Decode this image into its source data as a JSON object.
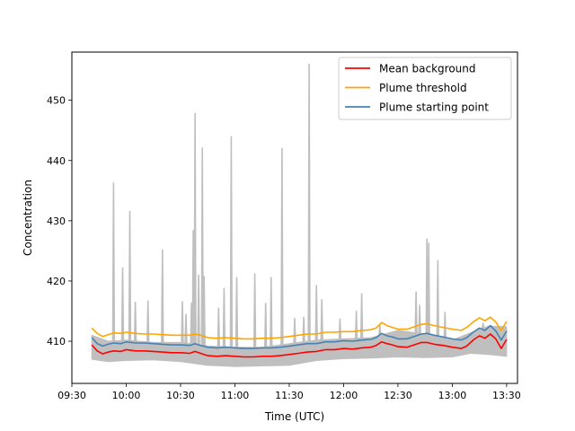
{
  "chart_data": {
    "type": "line",
    "title": "",
    "xlabel": "Time (UTC)",
    "ylabel": "Concentration",
    "xlim": [
      "09:30",
      "13:36"
    ],
    "ylim": [
      403,
      458
    ],
    "x_ticks": [
      "09:30",
      "10:00",
      "10:30",
      "11:00",
      "11:30",
      "12:00",
      "12:30",
      "13:00",
      "13:30"
    ],
    "y_ticks": [
      410,
      420,
      430,
      440,
      450
    ],
    "grid": false,
    "legend_position": "top-right",
    "raw_series": {
      "color": "#bfbfbf",
      "band": [
        {
          "t": "09:41",
          "lo": 407.0,
          "hi": 411.0
        },
        {
          "t": "09:50",
          "lo": 406.6,
          "hi": 410.0
        },
        {
          "t": "10:00",
          "lo": 406.8,
          "hi": 410.2
        },
        {
          "t": "10:15",
          "lo": 406.9,
          "hi": 409.8
        },
        {
          "t": "10:30",
          "lo": 406.6,
          "hi": 409.8
        },
        {
          "t": "10:45",
          "lo": 406.0,
          "hi": 409.2
        },
        {
          "t": "11:00",
          "lo": 405.8,
          "hi": 409.0
        },
        {
          "t": "11:15",
          "lo": 405.9,
          "hi": 409.0
        },
        {
          "t": "11:30",
          "lo": 406.0,
          "hi": 409.6
        },
        {
          "t": "11:45",
          "lo": 406.8,
          "hi": 410.2
        },
        {
          "t": "12:00",
          "lo": 407.1,
          "hi": 410.4
        },
        {
          "t": "12:15",
          "lo": 407.2,
          "hi": 410.6
        },
        {
          "t": "12:30",
          "lo": 407.4,
          "hi": 411.8
        },
        {
          "t": "12:45",
          "lo": 407.3,
          "hi": 411.2
        },
        {
          "t": "13:00",
          "lo": 407.4,
          "hi": 410.2
        },
        {
          "t": "13:10",
          "lo": 408.0,
          "hi": 411.4
        },
        {
          "t": "13:20",
          "lo": 407.8,
          "hi": 412.5
        },
        {
          "t": "13:30",
          "lo": 407.5,
          "hi": 412.4
        }
      ],
      "spikes": [
        {
          "t": "09:53",
          "peak": 436.3
        },
        {
          "t": "09:58",
          "peak": 422.2
        },
        {
          "t": "10:02",
          "peak": 431.6
        },
        {
          "t": "10:05",
          "peak": 416.5
        },
        {
          "t": "10:12",
          "peak": 416.7
        },
        {
          "t": "10:20",
          "peak": 425.2
        },
        {
          "t": "10:31",
          "peak": 416.6
        },
        {
          "t": "10:33",
          "peak": 414.5
        },
        {
          "t": "10:36",
          "peak": 416.4
        },
        {
          "t": "10:37",
          "peak": 428.4
        },
        {
          "t": "10:38",
          "peak": 447.8
        },
        {
          "t": "10:40",
          "peak": 421.0
        },
        {
          "t": "10:42",
          "peak": 442.1
        },
        {
          "t": "10:43",
          "peak": 420.8
        },
        {
          "t": "10:51",
          "peak": 415.5
        },
        {
          "t": "10:54",
          "peak": 418.8
        },
        {
          "t": "10:58",
          "peak": 444.0
        },
        {
          "t": "11:01",
          "peak": 420.6
        },
        {
          "t": "11:11",
          "peak": 421.2
        },
        {
          "t": "11:17",
          "peak": 416.3
        },
        {
          "t": "11:20",
          "peak": 420.6
        },
        {
          "t": "11:26",
          "peak": 442.0
        },
        {
          "t": "11:33",
          "peak": 413.8
        },
        {
          "t": "11:38",
          "peak": 414.0
        },
        {
          "t": "11:41",
          "peak": 456.0
        },
        {
          "t": "11:45",
          "peak": 419.3
        },
        {
          "t": "11:48",
          "peak": 416.9
        },
        {
          "t": "11:58",
          "peak": 413.7
        },
        {
          "t": "12:07",
          "peak": 415.0
        },
        {
          "t": "12:10",
          "peak": 417.9
        },
        {
          "t": "12:20",
          "peak": 412.7
        },
        {
          "t": "12:40",
          "peak": 418.2
        },
        {
          "t": "12:42",
          "peak": 416.0
        },
        {
          "t": "12:46",
          "peak": 427.0
        },
        {
          "t": "12:47",
          "peak": 426.3
        },
        {
          "t": "12:52",
          "peak": 423.4
        },
        {
          "t": "12:56",
          "peak": 414.8
        },
        {
          "t": "13:17",
          "peak": 413.0
        }
      ]
    },
    "series": [
      {
        "name": "Mean background",
        "color": "#ff0000",
        "points": [
          [
            "09:41",
            409.4
          ],
          [
            "09:44",
            408.4
          ],
          [
            "09:47",
            407.9
          ],
          [
            "09:50",
            408.2
          ],
          [
            "09:53",
            408.4
          ],
          [
            "09:57",
            408.3
          ],
          [
            "10:00",
            408.6
          ],
          [
            "10:05",
            408.4
          ],
          [
            "10:10",
            408.4
          ],
          [
            "10:15",
            408.3
          ],
          [
            "10:20",
            408.2
          ],
          [
            "10:25",
            408.1
          ],
          [
            "10:30",
            408.1
          ],
          [
            "10:35",
            408.0
          ],
          [
            "10:38",
            408.3
          ],
          [
            "10:41",
            408.0
          ],
          [
            "10:45",
            407.6
          ],
          [
            "10:50",
            407.5
          ],
          [
            "10:55",
            407.6
          ],
          [
            "11:00",
            407.5
          ],
          [
            "11:05",
            407.4
          ],
          [
            "11:10",
            407.4
          ],
          [
            "11:15",
            407.5
          ],
          [
            "11:20",
            407.5
          ],
          [
            "11:25",
            407.6
          ],
          [
            "11:30",
            407.8
          ],
          [
            "11:35",
            408.0
          ],
          [
            "11:40",
            408.2
          ],
          [
            "11:45",
            408.3
          ],
          [
            "11:50",
            408.6
          ],
          [
            "11:55",
            408.6
          ],
          [
            "12:00",
            408.8
          ],
          [
            "12:05",
            408.7
          ],
          [
            "12:10",
            408.9
          ],
          [
            "12:15",
            409.0
          ],
          [
            "12:18",
            409.3
          ],
          [
            "12:21",
            409.9
          ],
          [
            "12:24",
            409.6
          ],
          [
            "12:27",
            409.4
          ],
          [
            "12:30",
            409.1
          ],
          [
            "12:35",
            409.0
          ],
          [
            "12:40",
            409.5
          ],
          [
            "12:43",
            409.8
          ],
          [
            "12:46",
            409.8
          ],
          [
            "12:50",
            409.5
          ],
          [
            "12:55",
            409.3
          ],
          [
            "13:00",
            409.0
          ],
          [
            "13:05",
            408.8
          ],
          [
            "13:08",
            409.2
          ],
          [
            "13:12",
            410.3
          ],
          [
            "13:15",
            410.9
          ],
          [
            "13:18",
            410.5
          ],
          [
            "13:21",
            411.2
          ],
          [
            "13:24",
            410.4
          ],
          [
            "13:27",
            408.8
          ],
          [
            "13:30",
            410.3
          ]
        ]
      },
      {
        "name": "Plume threshold",
        "color": "#ffa500",
        "points": [
          [
            "09:41",
            412.2
          ],
          [
            "09:44",
            411.3
          ],
          [
            "09:47",
            410.8
          ],
          [
            "09:50",
            411.1
          ],
          [
            "09:53",
            411.4
          ],
          [
            "09:57",
            411.3
          ],
          [
            "10:00",
            411.5
          ],
          [
            "10:05",
            411.3
          ],
          [
            "10:10",
            411.2
          ],
          [
            "10:15",
            411.2
          ],
          [
            "10:20",
            411.1
          ],
          [
            "10:25",
            411.0
          ],
          [
            "10:30",
            411.0
          ],
          [
            "10:35",
            411.0
          ],
          [
            "10:38",
            411.2
          ],
          [
            "10:41",
            411.0
          ],
          [
            "10:45",
            410.6
          ],
          [
            "10:50",
            410.5
          ],
          [
            "10:55",
            410.6
          ],
          [
            "11:00",
            410.5
          ],
          [
            "11:05",
            410.4
          ],
          [
            "11:10",
            410.4
          ],
          [
            "11:15",
            410.5
          ],
          [
            "11:20",
            410.5
          ],
          [
            "11:25",
            410.6
          ],
          [
            "11:30",
            410.8
          ],
          [
            "11:35",
            411.0
          ],
          [
            "11:40",
            411.2
          ],
          [
            "11:45",
            411.2
          ],
          [
            "11:50",
            411.5
          ],
          [
            "11:55",
            411.5
          ],
          [
            "12:00",
            411.6
          ],
          [
            "12:05",
            411.6
          ],
          [
            "12:10",
            411.8
          ],
          [
            "12:15",
            411.9
          ],
          [
            "12:18",
            412.2
          ],
          [
            "12:21",
            413.1
          ],
          [
            "12:24",
            412.6
          ],
          [
            "12:27",
            412.3
          ],
          [
            "12:30",
            412.0
          ],
          [
            "12:35",
            412.0
          ],
          [
            "12:40",
            412.5
          ],
          [
            "12:43",
            412.8
          ],
          [
            "12:46",
            412.9
          ],
          [
            "12:50",
            412.6
          ],
          [
            "12:55",
            412.3
          ],
          [
            "13:00",
            412.0
          ],
          [
            "13:05",
            411.8
          ],
          [
            "13:08",
            412.3
          ],
          [
            "13:12",
            413.3
          ],
          [
            "13:15",
            413.9
          ],
          [
            "13:18",
            413.4
          ],
          [
            "13:21",
            414.0
          ],
          [
            "13:24",
            413.2
          ],
          [
            "13:27",
            411.8
          ],
          [
            "13:30",
            413.3
          ]
        ]
      },
      {
        "name": "Plume starting point",
        "color": "#4682b4",
        "points": [
          [
            "09:41",
            410.6
          ],
          [
            "09:44",
            409.6
          ],
          [
            "09:47",
            409.2
          ],
          [
            "09:50",
            409.5
          ],
          [
            "09:53",
            409.7
          ],
          [
            "09:57",
            409.6
          ],
          [
            "10:00",
            409.9
          ],
          [
            "10:05",
            409.7
          ],
          [
            "10:10",
            409.7
          ],
          [
            "10:15",
            409.6
          ],
          [
            "10:20",
            409.5
          ],
          [
            "10:25",
            409.4
          ],
          [
            "10:30",
            409.4
          ],
          [
            "10:35",
            409.3
          ],
          [
            "10:38",
            409.6
          ],
          [
            "10:41",
            409.3
          ],
          [
            "10:45",
            409.0
          ],
          [
            "10:50",
            408.9
          ],
          [
            "10:55",
            409.0
          ],
          [
            "11:00",
            408.9
          ],
          [
            "11:05",
            408.8
          ],
          [
            "11:10",
            408.8
          ],
          [
            "11:15",
            408.9
          ],
          [
            "11:20",
            408.9
          ],
          [
            "11:25",
            409.0
          ],
          [
            "11:30",
            409.2
          ],
          [
            "11:35",
            409.4
          ],
          [
            "11:40",
            409.6
          ],
          [
            "11:45",
            409.6
          ],
          [
            "11:50",
            409.9
          ],
          [
            "11:55",
            409.9
          ],
          [
            "12:00",
            410.1
          ],
          [
            "12:05",
            410.0
          ],
          [
            "12:10",
            410.2
          ],
          [
            "12:15",
            410.3
          ],
          [
            "12:18",
            410.6
          ],
          [
            "12:21",
            411.3
          ],
          [
            "12:24",
            410.9
          ],
          [
            "12:27",
            410.7
          ],
          [
            "12:30",
            410.4
          ],
          [
            "12:35",
            410.4
          ],
          [
            "12:40",
            410.9
          ],
          [
            "12:43",
            411.2
          ],
          [
            "12:46",
            411.3
          ],
          [
            "12:50",
            411.0
          ],
          [
            "12:55",
            410.7
          ],
          [
            "13:00",
            410.4
          ],
          [
            "13:05",
            410.2
          ],
          [
            "13:08",
            410.6
          ],
          [
            "13:12",
            411.6
          ],
          [
            "13:15",
            412.2
          ],
          [
            "13:18",
            411.8
          ],
          [
            "13:21",
            412.6
          ],
          [
            "13:24",
            411.7
          ],
          [
            "13:27",
            410.2
          ],
          [
            "13:30",
            411.7
          ]
        ]
      }
    ]
  }
}
